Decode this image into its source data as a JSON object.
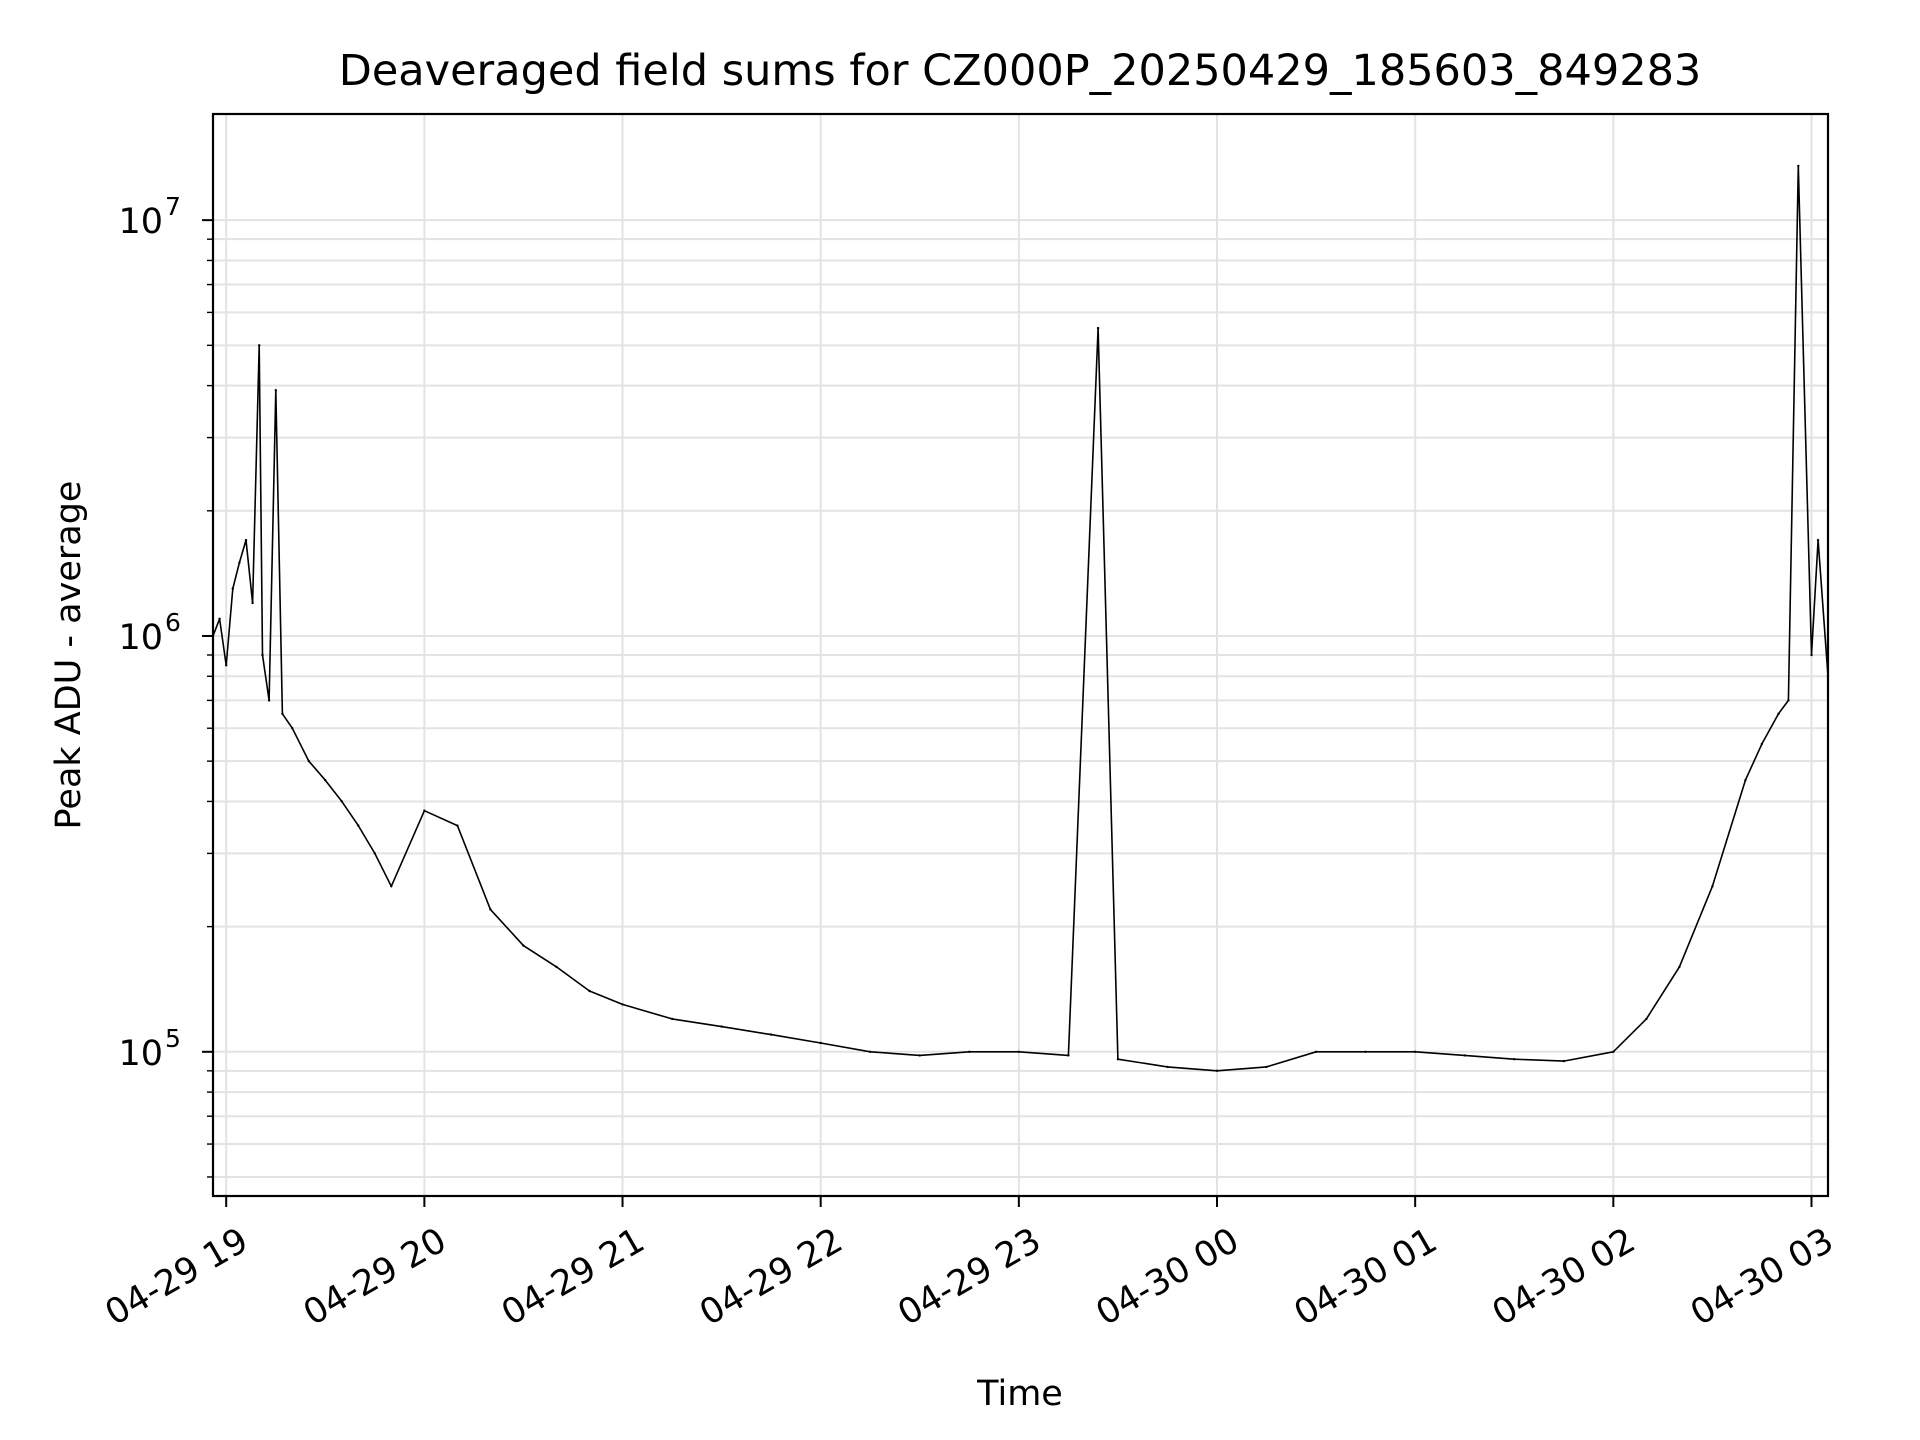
{
  "chart_data": {
    "type": "line",
    "title": "Deaveraged field sums for CZ000P_20250429_185603_849283",
    "xlabel": "Time",
    "ylabel": "Peak ADU - average",
    "yscale": "log",
    "ylim": [
      45000,
      18000000
    ],
    "xlim": [
      "04-29 18:56",
      "04-30 03:05"
    ],
    "grid": true,
    "line_color": "#000000",
    "x_ticks": [
      "04-29 19",
      "04-29 20",
      "04-29 21",
      "04-29 22",
      "04-29 23",
      "04-30 00",
      "04-30 01",
      "04-30 02",
      "04-30 03"
    ],
    "y_ticks": [
      {
        "base": "10",
        "exp": "5",
        "value": 100000
      },
      {
        "base": "10",
        "exp": "6",
        "value": 1000000
      },
      {
        "base": "10",
        "exp": "7",
        "value": 10000000
      }
    ],
    "series": [
      {
        "x": [
          "04-29 18:56",
          "04-29 18:58",
          "04-29 19:00",
          "04-29 19:02",
          "04-29 19:04",
          "04-29 19:06",
          "04-29 19:08",
          "04-29 19:10",
          "04-29 19:11",
          "04-29 19:13",
          "04-29 19:15",
          "04-29 19:17",
          "04-29 19:20",
          "04-29 19:25",
          "04-29 19:30",
          "04-29 19:35",
          "04-29 19:40",
          "04-29 19:45",
          "04-29 19:50",
          "04-29 20:00",
          "04-29 20:10",
          "04-29 20:20",
          "04-29 20:30",
          "04-29 20:40",
          "04-29 20:50",
          "04-29 21:00",
          "04-29 21:15",
          "04-29 21:30",
          "04-29 21:45",
          "04-29 22:00",
          "04-29 22:15",
          "04-29 22:30",
          "04-29 22:45",
          "04-29 23:00",
          "04-29 23:15",
          "04-29 23:24",
          "04-29 23:30",
          "04-29 23:45",
          "04-30 00:00",
          "04-30 00:15",
          "04-30 00:30",
          "04-30 00:45",
          "04-30 01:00",
          "04-30 01:15",
          "04-30 01:30",
          "04-30 01:45",
          "04-30 02:00",
          "04-30 02:10",
          "04-30 02:20",
          "04-30 02:30",
          "04-30 02:40",
          "04-30 02:45",
          "04-30 02:50",
          "04-30 02:53",
          "04-30 02:56",
          "04-30 03:00",
          "04-30 03:02",
          "04-30 03:05"
        ],
        "y": [
          1000000,
          1100000,
          850000,
          1300000,
          1500000,
          1700000,
          1200000,
          5000000,
          900000,
          700000,
          3900000,
          650000,
          600000,
          500000,
          450000,
          400000,
          350000,
          300000,
          250000,
          380000,
          350000,
          220000,
          180000,
          160000,
          140000,
          130000,
          120000,
          115000,
          110000,
          105000,
          100000,
          98000,
          100000,
          100000,
          98000,
          5500000,
          96000,
          92000,
          90000,
          92000,
          100000,
          100000,
          100000,
          98000,
          96000,
          95000,
          100000,
          120000,
          160000,
          250000,
          450000,
          550000,
          650000,
          700000,
          13500000,
          900000,
          1700000,
          800000
        ]
      }
    ]
  }
}
